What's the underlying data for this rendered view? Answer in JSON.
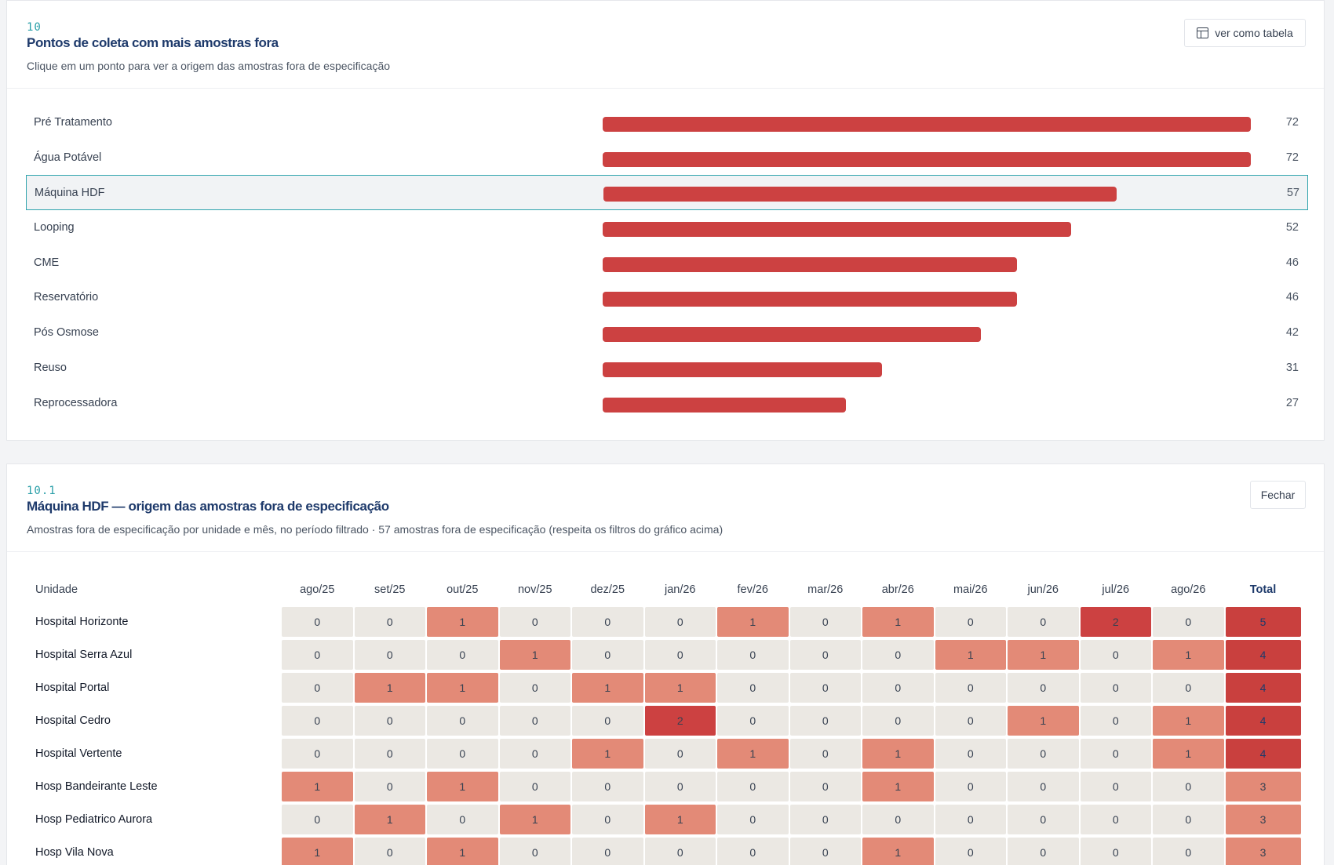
{
  "palette": {
    "zero": "#ebe8e3",
    "one": "#e38a77",
    "two": "#cc4141",
    "total3": "#e38a77",
    "total4": "#c9403e",
    "bar": "#cc4141",
    "accent": "#2fa4ad",
    "title": "#1e3a6b"
  },
  "section1": {
    "tag": "10",
    "title": "Pontos de coleta com mais amostras fora",
    "subtitle": "Clique em um ponto para ver a origem das amostras fora de especificação",
    "table_button": {
      "icon": "table-icon",
      "label": "ver como tabela"
    }
  },
  "section2": {
    "tag": "10.1",
    "title": "Máquina HDF — origem das amostras fora de especificação",
    "subtitle": "Amostras fora de especificação por unidade e mês, no período filtrado · 57 amostras fora de especificação (respeita os filtros do gráfico acima)",
    "close_label": "Fechar"
  },
  "chart_data": [
    {
      "type": "bar",
      "orientation": "horizontal",
      "categories": [
        "Pré Tratamento",
        "Água Potável",
        "Máquina HDF",
        "Looping",
        "CME",
        "Reservatório",
        "Pós Osmose",
        "Reuso",
        "Reprocessadora"
      ],
      "values": [
        72,
        72,
        57,
        52,
        46,
        46,
        42,
        31,
        27
      ],
      "xlim": [
        0,
        72
      ],
      "selected": "Máquina HDF",
      "grid": false
    },
    {
      "type": "heatmap",
      "row_header": "Unidade",
      "columns": [
        "ago/25",
        "set/25",
        "out/25",
        "nov/25",
        "dez/25",
        "jan/26",
        "fev/26",
        "mar/26",
        "abr/26",
        "mai/26",
        "jun/26",
        "jul/26",
        "ago/26"
      ],
      "total_header": "Total",
      "rows": [
        {
          "label": "Hospital Horizonte",
          "values": [
            0,
            0,
            1,
            0,
            0,
            0,
            1,
            0,
            1,
            0,
            0,
            2,
            0
          ],
          "total": 5
        },
        {
          "label": "Hospital Serra Azul",
          "values": [
            0,
            0,
            0,
            1,
            0,
            0,
            0,
            0,
            0,
            1,
            1,
            0,
            1
          ],
          "total": 4
        },
        {
          "label": "Hospital Portal",
          "values": [
            0,
            1,
            1,
            0,
            1,
            1,
            0,
            0,
            0,
            0,
            0,
            0,
            0
          ],
          "total": 4
        },
        {
          "label": "Hospital Cedro",
          "values": [
            0,
            0,
            0,
            0,
            0,
            2,
            0,
            0,
            0,
            0,
            1,
            0,
            1
          ],
          "total": 4
        },
        {
          "label": "Hospital Vertente",
          "values": [
            0,
            0,
            0,
            0,
            1,
            0,
            1,
            0,
            1,
            0,
            0,
            0,
            1
          ],
          "total": 4
        },
        {
          "label": "Hosp Bandeirante Leste",
          "values": [
            1,
            0,
            1,
            0,
            0,
            0,
            0,
            0,
            1,
            0,
            0,
            0,
            0
          ],
          "total": 3
        },
        {
          "label": "Hosp Pediatrico Aurora",
          "values": [
            0,
            1,
            0,
            1,
            0,
            1,
            0,
            0,
            0,
            0,
            0,
            0,
            0
          ],
          "total": 3
        },
        {
          "label": "Hosp Vila Nova",
          "values": [
            1,
            0,
            1,
            0,
            0,
            0,
            0,
            0,
            1,
            0,
            0,
            0,
            0
          ],
          "total": 3
        }
      ]
    }
  ]
}
